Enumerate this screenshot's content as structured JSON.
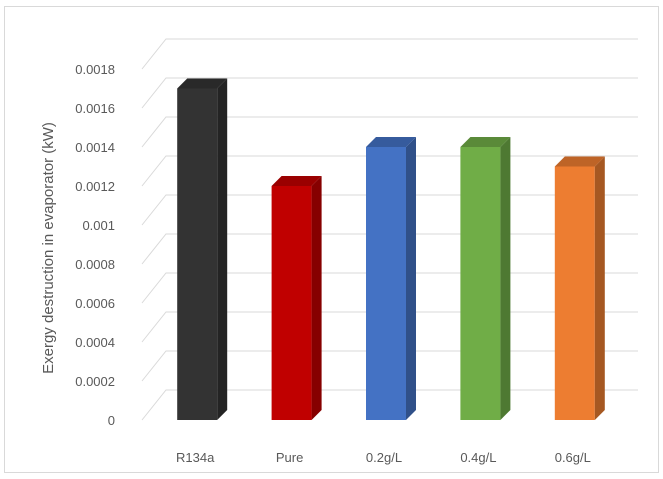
{
  "chart_data": {
    "type": "bar",
    "style": "3d-column",
    "categories": [
      "R134a",
      "Pure",
      "0.2g/L",
      "0.4g/L",
      "0.6g/L"
    ],
    "values": [
      0.0017,
      0.0012,
      0.0014,
      0.0014,
      0.0013
    ],
    "colors": [
      "#333333",
      "#c00000",
      "#4472c4",
      "#70ad47",
      "#ed7d31"
    ],
    "ylabel": "Exergy destruction  in evaporator (kW)",
    "xlabel": "",
    "title": "",
    "ylim": [
      0,
      0.0018
    ],
    "yticks": [
      "0",
      "0.0002",
      "0.0004",
      "0.0006",
      "0.0008",
      "0.001",
      "0.0012",
      "0.0014",
      "0.0016",
      "0.0018"
    ],
    "grid": true,
    "legend": "none"
  }
}
